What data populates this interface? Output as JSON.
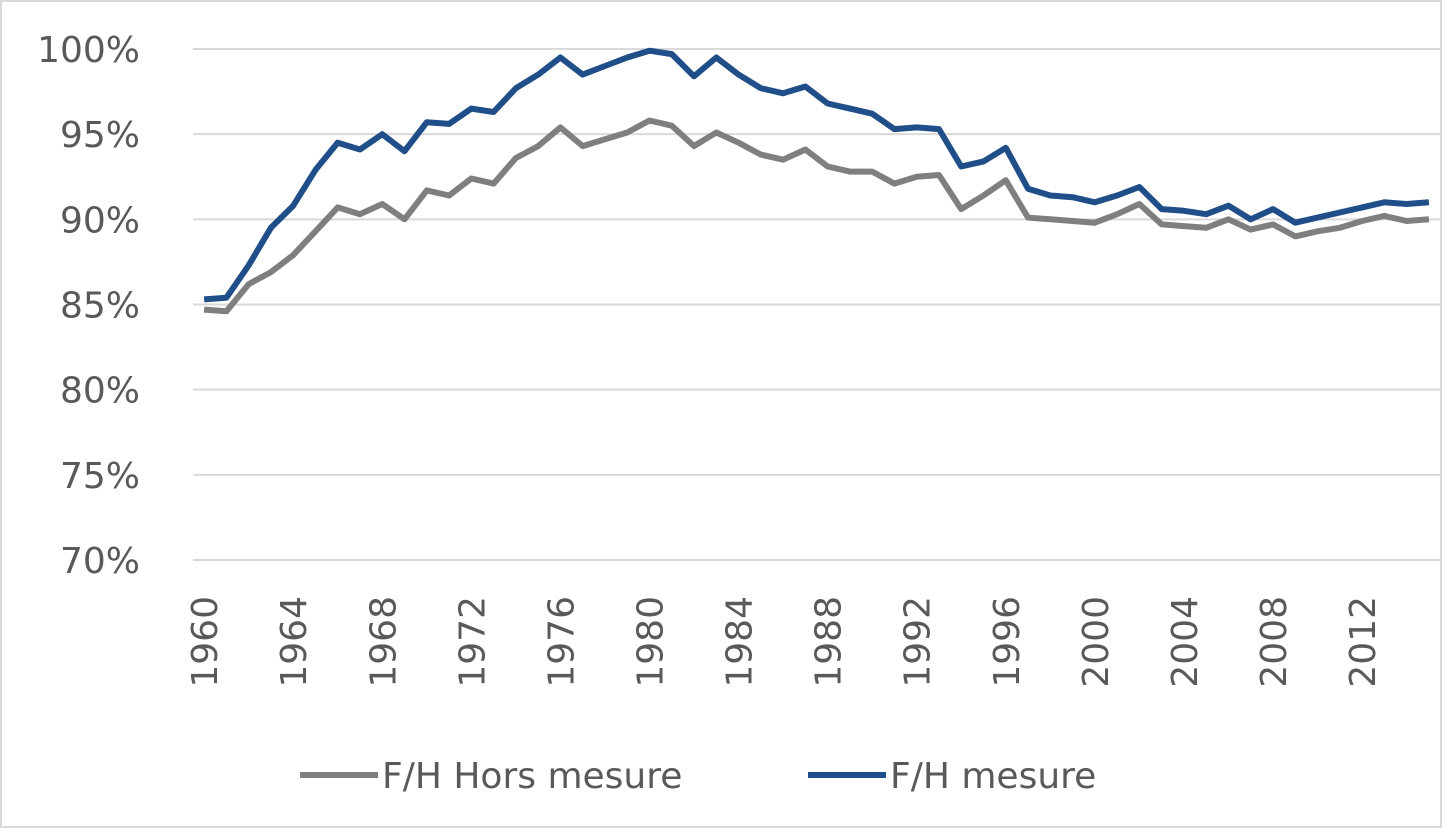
{
  "chart_data": {
    "type": "line",
    "x": [
      1960,
      1961,
      1962,
      1963,
      1964,
      1965,
      1966,
      1967,
      1968,
      1969,
      1970,
      1971,
      1972,
      1973,
      1974,
      1975,
      1976,
      1977,
      1978,
      1979,
      1980,
      1981,
      1982,
      1983,
      1984,
      1985,
      1986,
      1987,
      1988,
      1989,
      1990,
      1991,
      1992,
      1993,
      1994,
      1995,
      1996,
      1997,
      1998,
      1999,
      2000,
      2001,
      2002,
      2003,
      2004,
      2005,
      2006,
      2007,
      2008,
      2009,
      2010,
      2011,
      2012,
      2013,
      2014,
      2015
    ],
    "series": [
      {
        "name": "F/H Hors mesure",
        "color": "#7f7f7f",
        "values": [
          84.7,
          84.6,
          86.2,
          86.9,
          87.9,
          89.3,
          90.7,
          90.3,
          90.9,
          90.0,
          91.7,
          91.4,
          92.4,
          92.1,
          93.6,
          94.3,
          95.4,
          94.3,
          94.7,
          95.1,
          95.8,
          95.5,
          94.3,
          95.1,
          94.5,
          93.8,
          93.5,
          94.1,
          93.1,
          92.8,
          92.8,
          92.1,
          92.5,
          92.6,
          90.6,
          91.4,
          92.3,
          90.1,
          90.0,
          89.9,
          89.8,
          90.3,
          90.9,
          89.7,
          89.6,
          89.5,
          90.0,
          89.4,
          89.7,
          89.0,
          89.3,
          89.5,
          89.9,
          90.2,
          89.9,
          90.0
        ]
      },
      {
        "name": "F/H mesure",
        "color": "#1f4e89",
        "values": [
          85.3,
          85.4,
          87.3,
          89.5,
          90.8,
          92.9,
          94.5,
          94.1,
          95.0,
          94.0,
          95.7,
          95.6,
          96.5,
          96.3,
          97.7,
          98.5,
          99.5,
          98.5,
          99.0,
          99.5,
          99.9,
          99.7,
          98.4,
          99.5,
          98.5,
          97.7,
          97.4,
          97.8,
          96.8,
          96.5,
          96.2,
          95.3,
          95.4,
          95.3,
          93.1,
          93.4,
          94.2,
          91.8,
          91.4,
          91.3,
          91.0,
          91.4,
          91.9,
          90.6,
          90.5,
          90.3,
          90.8,
          90.0,
          90.6,
          89.8,
          90.1,
          90.4,
          90.7,
          91.0,
          90.9,
          91.0
        ]
      }
    ],
    "xlim": [
      1959.5,
      2015.5
    ],
    "xticks": [
      1960,
      1964,
      1968,
      1972,
      1976,
      1980,
      1984,
      1988,
      1992,
      1996,
      2000,
      2004,
      2008,
      2012
    ],
    "ylim": [
      70,
      100
    ],
    "yticks": [
      {
        "value": 70,
        "label": "70%"
      },
      {
        "value": 75,
        "label": "75%"
      },
      {
        "value": 80,
        "label": "80%"
      },
      {
        "value": 85,
        "label": "85%"
      },
      {
        "value": 90,
        "label": "90%"
      },
      {
        "value": 95,
        "label": "95%"
      },
      {
        "value": 100,
        "label": "100%"
      }
    ],
    "grid": true,
    "legend": "bottom"
  }
}
